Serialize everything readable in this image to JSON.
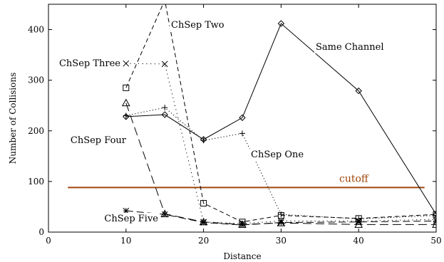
{
  "chart_data": {
    "type": "line",
    "xlabel": "Distance",
    "ylabel": "Number of Collisions",
    "xlim": [
      0,
      50
    ],
    "ylim": [
      0,
      450
    ],
    "xticks": [
      0,
      10,
      20,
      30,
      40,
      50
    ],
    "yticks": [
      0,
      100,
      200,
      300,
      400
    ],
    "grid": false,
    "legend": "inline labels",
    "series": [
      {
        "name": "Same Channel",
        "marker": "diamond",
        "dash": "solid",
        "x": [
          10,
          15,
          20,
          25,
          30,
          40,
          50
        ],
        "y": [
          228,
          232,
          183,
          226,
          412,
          279,
          35
        ]
      },
      {
        "name": "ChSep One",
        "marker": "plus",
        "dash": "dotted",
        "x": [
          10,
          15,
          20,
          25,
          30,
          40,
          50
        ],
        "y": [
          230,
          246,
          181,
          195,
          35,
          26,
          33
        ]
      },
      {
        "name": "ChSep Two",
        "marker": "square",
        "dash": "dashed",
        "x": [
          10,
          15,
          20,
          25,
          30,
          40,
          50
        ],
        "y": [
          285,
          458,
          57,
          20,
          33,
          27,
          35
        ]
      },
      {
        "name": "ChSep Three",
        "marker": "x",
        "dash": "dotted-wide",
        "x": [
          10,
          15,
          20,
          25,
          30,
          40,
          50
        ],
        "y": [
          333,
          332,
          20,
          17,
          22,
          22,
          25
        ]
      },
      {
        "name": "ChSep Four",
        "marker": "triangle",
        "dash": "long-dash",
        "x": [
          10,
          15,
          20,
          25,
          30,
          40,
          50
        ],
        "y": [
          255,
          36,
          20,
          15,
          18,
          15,
          15
        ]
      },
      {
        "name": "ChSep Five",
        "marker": "star",
        "dash": "dash-dot",
        "x": [
          10,
          15,
          20,
          25,
          30,
          40,
          50
        ],
        "y": [
          42,
          35,
          19,
          14,
          19,
          20,
          22
        ]
      }
    ],
    "cutoff": {
      "label": "cutoff",
      "value": 88,
      "x": [
        2.5,
        48.5
      ],
      "color": "#a0460a"
    }
  }
}
